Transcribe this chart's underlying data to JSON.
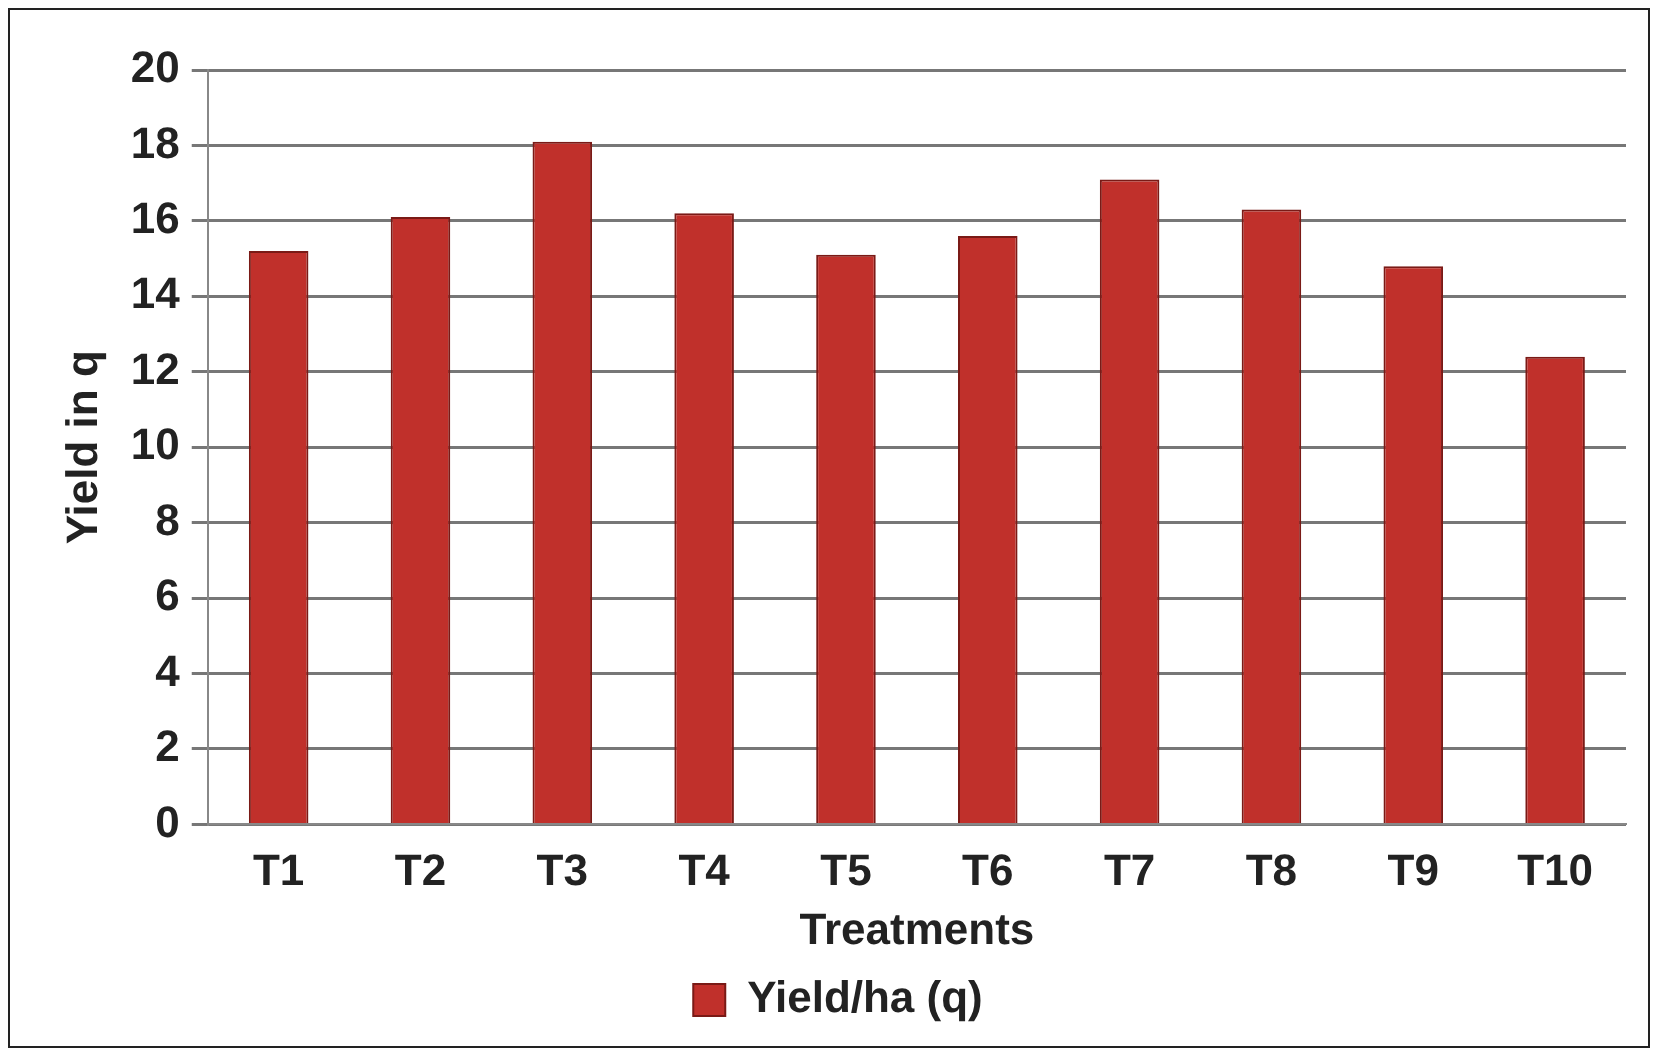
{
  "chart_data": {
    "type": "bar",
    "xlabel": "Treatments",
    "ylabel": "Yield in q",
    "categories": [
      "T1",
      "T2",
      "T3",
      "T4",
      "T5",
      "T6",
      "T7",
      "T8",
      "T9",
      "T10"
    ],
    "series": [
      {
        "name": "Yield/ha (q)",
        "color": "#c0302b",
        "values": [
          15.2,
          16.1,
          18.1,
          16.2,
          15.1,
          15.6,
          17.1,
          16.3,
          14.8,
          12.4
        ]
      }
    ],
    "ylim": [
      0,
      20
    ],
    "yticks": [
      0,
      2,
      4,
      6,
      8,
      10,
      12,
      14,
      16,
      18,
      20
    ],
    "grid": "y",
    "legend": "bottom"
  }
}
